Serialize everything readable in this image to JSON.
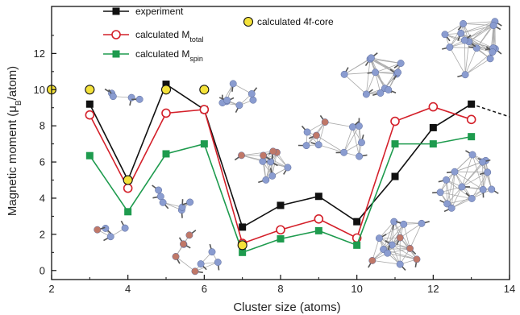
{
  "chart_data": {
    "type": "line",
    "xlabel": "Cluster size (atoms)",
    "ylabel": "Magnetic moment (",
    "ylabel_sym": "μ",
    "ylabel_sub": "B",
    "ylabel_tail": "/atom)",
    "xlim": [
      2,
      14
    ],
    "ylim": [
      -0.5,
      14.6
    ],
    "x_ticks": [
      2,
      4,
      6,
      8,
      10,
      12,
      14
    ],
    "y_ticks": [
      0,
      2,
      4,
      6,
      8,
      10,
      12
    ],
    "grid": false,
    "legend_position": "top",
    "series": [
      {
        "name": "experiment",
        "color": "#111111",
        "marker": "square",
        "x": [
          3,
          4,
          5,
          6,
          7,
          8,
          9,
          10,
          11,
          12,
          13
        ],
        "y": [
          9.2,
          5.0,
          10.3,
          8.9,
          2.4,
          3.6,
          4.1,
          2.7,
          5.2,
          7.9,
          9.2
        ],
        "extrapolation": {
          "x": [
            13,
            14
          ],
          "y": [
            9.2,
            8.5
          ]
        }
      },
      {
        "name": "calculated M",
        "name_sub": "total",
        "color": "#d4202a",
        "marker": "open-circle",
        "x": [
          3,
          4,
          5,
          6,
          7,
          8,
          9,
          10,
          11,
          12,
          13
        ],
        "y": [
          8.6,
          4.55,
          8.7,
          8.9,
          1.5,
          2.25,
          2.85,
          1.8,
          8.25,
          9.05,
          8.35
        ]
      },
      {
        "name": "calculated M",
        "name_sub": "spin",
        "color": "#1e9b4e",
        "marker": "square",
        "x": [
          3,
          4,
          5,
          6,
          7,
          8,
          9,
          10,
          11,
          12,
          13
        ],
        "y": [
          6.35,
          3.25,
          6.45,
          7.0,
          1.0,
          1.75,
          2.2,
          1.4,
          7.0,
          7.0,
          7.4
        ]
      },
      {
        "name": "calculated 4f-core",
        "color": "#f4e23a",
        "marker": "yellow-circle",
        "x": [
          2,
          3,
          4,
          5,
          6,
          7
        ],
        "y": [
          10.0,
          10.0,
          5.0,
          10.0,
          10.0,
          1.4
        ]
      }
    ],
    "illustration_colors": {
      "blue_atom": "#8a9cd0",
      "brown_atom": "#c07868",
      "bond": "#aaaaaa",
      "arrow": "#555555"
    }
  }
}
